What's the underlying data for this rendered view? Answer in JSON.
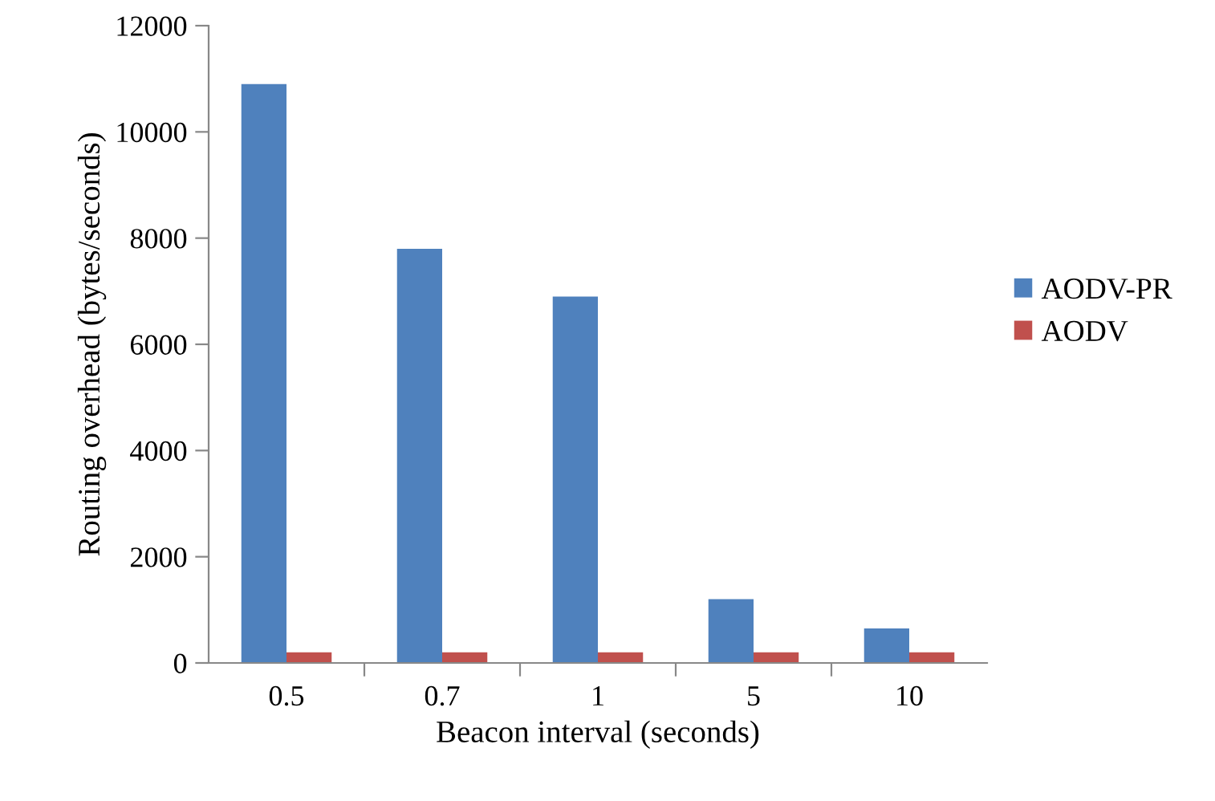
{
  "chart_data": {
    "type": "bar",
    "xlabel": "Beacon interval (seconds)",
    "ylabel": "Routing overhead (bytes/seconds)",
    "categories": [
      "0.5",
      "0.7",
      "1",
      "5",
      "10"
    ],
    "series": [
      {
        "name": "AODV-PR",
        "color": "#4f81bd",
        "values": [
          10900,
          7800,
          6900,
          1200,
          650
        ]
      },
      {
        "name": "AODV",
        "color": "#c0504d",
        "values": [
          200,
          200,
          200,
          200,
          200
        ]
      }
    ],
    "ylim": [
      0,
      12000
    ],
    "yticks": [
      0,
      2000,
      4000,
      6000,
      8000,
      10000,
      12000
    ],
    "grid": false,
    "legend": "right"
  }
}
